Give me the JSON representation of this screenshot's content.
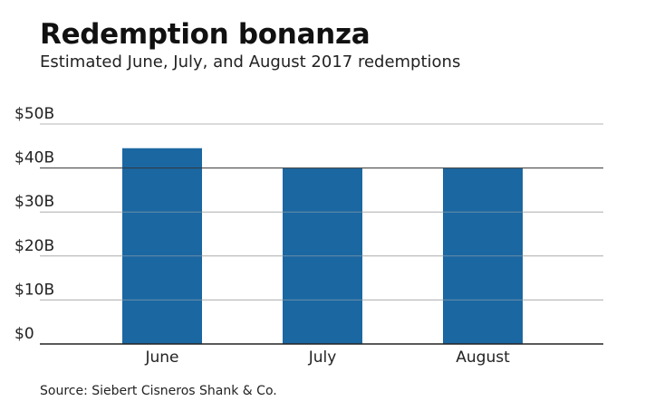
{
  "title": "Redemption bonanza",
  "subtitle": "Estimated June, July, and August 2017 redemptions",
  "source": "Source: Siebert Cisneros Shank & Co.",
  "colors": {
    "bar": "#1b67a1",
    "gridline": "#b5b5b5",
    "baseline": "#222222"
  },
  "chart_data": {
    "type": "bar",
    "categories": [
      "June",
      "July",
      "August"
    ],
    "values": [
      44.5,
      40,
      40
    ],
    "ylim": [
      0,
      50
    ],
    "yticks": [
      0,
      10,
      20,
      30,
      40,
      50
    ],
    "ytick_labels": [
      "$0",
      "$10B",
      "$20B",
      "$30B",
      "$40B",
      "$50B"
    ],
    "grid": true,
    "legend": "none"
  }
}
